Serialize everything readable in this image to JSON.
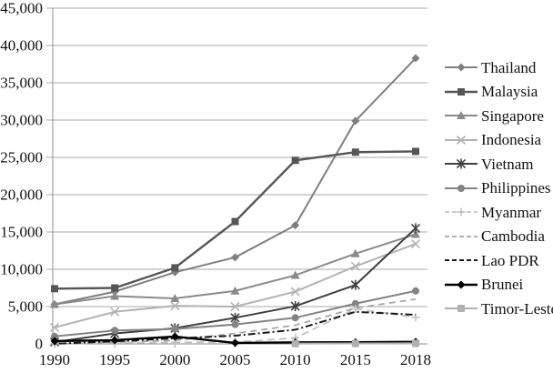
{
  "chart_data": {
    "type": "line",
    "title": "",
    "xlabel": "",
    "ylabel": "",
    "categories": [
      "1990",
      "1995",
      "2000",
      "2005",
      "2010",
      "2015",
      "2018"
    ],
    "ylim": [
      0,
      45000
    ],
    "ytick_step": 5000,
    "ytick_labels": [
      "0",
      "5,000",
      "10,000",
      "15,000",
      "20,000",
      "25,000",
      "30,000",
      "35,000",
      "40,000",
      "45,000"
    ],
    "grid": "horizontal",
    "legend_position": "right",
    "axis_color": "#8c8c8c",
    "grid_color": "#aaaaaa",
    "text_color": "#111111",
    "series": [
      {
        "name": "Thailand",
        "color": "#7f7f7f",
        "marker": "diamond",
        "dash": "",
        "width": 2,
        "values": [
          5300,
          7000,
          9600,
          11600,
          15900,
          29900,
          38300
        ]
      },
      {
        "name": "Malaysia",
        "color": "#565656",
        "marker": "square",
        "dash": "",
        "width": 2.4,
        "values": [
          7400,
          7500,
          10200,
          16400,
          24600,
          25700,
          25800
        ]
      },
      {
        "name": "Singapore",
        "color": "#8a8a8a",
        "marker": "triangle",
        "dash": "",
        "width": 2,
        "values": [
          5300,
          6400,
          6100,
          7100,
          9200,
          12100,
          14700
        ]
      },
      {
        "name": "Indonesia",
        "color": "#b2b2b2",
        "marker": "x",
        "dash": "",
        "width": 2,
        "values": [
          2200,
          4300,
          5100,
          5000,
          7000,
          10400,
          13400
        ]
      },
      {
        "name": "Vietnam",
        "color": "#3f3f3f",
        "marker": "star",
        "dash": "",
        "width": 2,
        "values": [
          250,
          1400,
          2100,
          3500,
          5050,
          7900,
          15500
        ]
      },
      {
        "name": "Philippines",
        "color": "#848484",
        "marker": "circle",
        "dash": "",
        "width": 2,
        "values": [
          1000,
          1800,
          2000,
          2600,
          3500,
          5400,
          7100
        ]
      },
      {
        "name": "Myanmar",
        "color": "#c2c2c2",
        "marker": "plus",
        "dash": "8 5",
        "width": 1.8,
        "values": [
          20,
          120,
          210,
          230,
          800,
          4700,
          3550
        ]
      },
      {
        "name": "Cambodia",
        "color": "#a6a6a6",
        "marker": "none",
        "dash": "7 5",
        "width": 1.8,
        "values": [
          20,
          220,
          470,
          1400,
          2500,
          4800,
          6000
        ]
      },
      {
        "name": "Lao PDR",
        "color": "#1a1a1a",
        "marker": "none",
        "dash": "2 3 8 3",
        "width": 2,
        "values": [
          15,
          350,
          740,
          1100,
          1900,
          4300,
          3900
        ]
      },
      {
        "name": "Brunei",
        "color": "#000000",
        "marker": "diamond",
        "dash": "",
        "width": 2.4,
        "values": [
          380,
          500,
          980,
          130,
          210,
          220,
          280
        ]
      },
      {
        "name": "Timor-Leste",
        "color": "#b0b0b0",
        "marker": "square",
        "dash": "",
        "width": 2,
        "values": [
          null,
          null,
          null,
          null,
          40,
          60,
          75
        ]
      }
    ]
  }
}
